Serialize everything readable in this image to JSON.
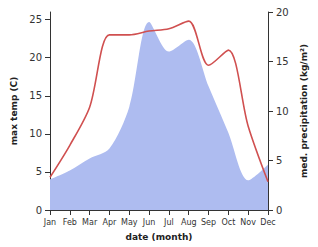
{
  "chart_data": {
    "type": "line",
    "x_label": "date (month)",
    "y_label": "max temp (C)",
    "y2_label": "med. precipitation (kg/m²)",
    "categories": [
      "Jan",
      "Feb",
      "Mar",
      "Apr",
      "May",
      "Jun",
      "Jul",
      "Aug",
      "Sep",
      "Oct",
      "Nov",
      "Dec"
    ],
    "series": [
      {
        "name": "max temp",
        "type": "line",
        "color": "#d05050",
        "values": [
          4.3,
          8.5,
          13.5,
          23.0,
          23.0,
          23.5,
          23.8,
          24.8,
          19.0,
          21.0,
          11.0,
          3.7
        ]
      },
      {
        "name": "med. precipitation",
        "type": "area",
        "axis": "y2",
        "color": "#aebcf0",
        "values": [
          3.1,
          4.0,
          5.2,
          6.2,
          10.4,
          19.0,
          16.0,
          17.2,
          12.5,
          7.8,
          3.0,
          4.6
        ]
      }
    ],
    "ylim": [
      0,
      26
    ],
    "yticks": [
      0,
      5,
      10,
      15,
      20,
      25
    ],
    "y2lim": [
      0,
      20
    ],
    "y2ticks": [
      0,
      5,
      10,
      15,
      20
    ],
    "grid": false
  }
}
